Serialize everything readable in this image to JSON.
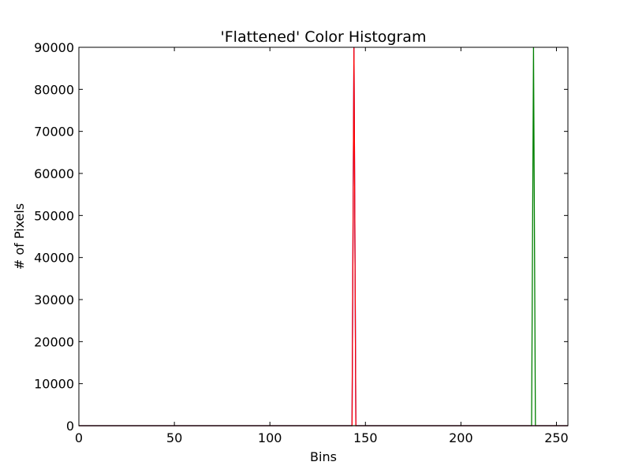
{
  "chart_data": {
    "type": "line",
    "title": "'Flattened' Color Histogram",
    "xlabel": "Bins",
    "ylabel": "# of Pixels",
    "xlim": [
      0,
      256
    ],
    "ylim": [
      0,
      90000
    ],
    "xticks": [
      0,
      50,
      100,
      150,
      200,
      250
    ],
    "yticks": [
      0,
      10000,
      20000,
      30000,
      40000,
      50000,
      60000,
      70000,
      80000,
      90000
    ],
    "grid": false,
    "series": [
      {
        "color": "#0000ff",
        "points": [
          [
            0,
            0
          ],
          [
            143,
            0
          ],
          [
            144,
            90000
          ],
          [
            145,
            0
          ],
          [
            256,
            0
          ]
        ]
      },
      {
        "color": "#008000",
        "points": [
          [
            0,
            0
          ],
          [
            237,
            0
          ],
          [
            238,
            90000
          ],
          [
            239,
            0
          ],
          [
            256,
            0
          ]
        ]
      },
      {
        "color": "#ff0000",
        "points": [
          [
            0,
            0
          ],
          [
            143,
            0
          ],
          [
            144,
            90000
          ],
          [
            145,
            0
          ],
          [
            256,
            0
          ]
        ]
      }
    ]
  }
}
